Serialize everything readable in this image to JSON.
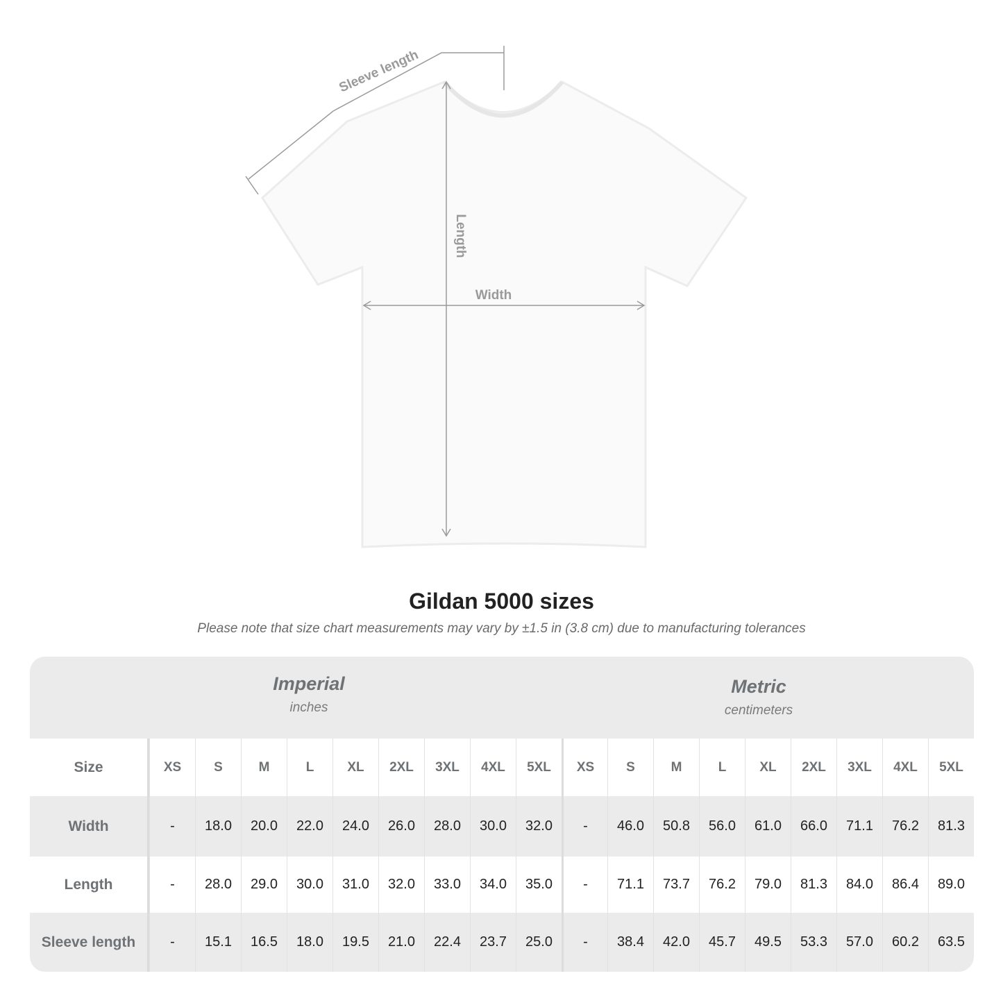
{
  "diagram": {
    "sleeve_label": "Sleeve length",
    "length_label": "Length",
    "width_label": "Width",
    "line_color": "#9a9a9a"
  },
  "title": "Gildan 5000 sizes",
  "note": "Please note that size chart measurements may vary by ±1.5 in (3.8 cm) due to manufacturing tolerances",
  "imperial": {
    "name": "Imperial",
    "unit": "inches"
  },
  "metric": {
    "name": "Metric",
    "unit": "centimeters"
  },
  "size_label": "Size",
  "sizes": [
    "XS",
    "S",
    "M",
    "L",
    "XL",
    "2XL",
    "3XL",
    "4XL",
    "5XL"
  ],
  "rows": [
    {
      "label": "Width",
      "imperial": [
        "-",
        "18.0",
        "20.0",
        "22.0",
        "24.0",
        "26.0",
        "28.0",
        "30.0",
        "32.0"
      ],
      "metric": [
        "-",
        "46.0",
        "50.8",
        "56.0",
        "61.0",
        "66.0",
        "71.1",
        "76.2",
        "81.3"
      ]
    },
    {
      "label": "Length",
      "imperial": [
        "-",
        "28.0",
        "29.0",
        "30.0",
        "31.0",
        "32.0",
        "33.0",
        "34.0",
        "35.0"
      ],
      "metric": [
        "-",
        "71.1",
        "73.7",
        "76.2",
        "79.0",
        "81.3",
        "84.0",
        "86.4",
        "89.0"
      ]
    },
    {
      "label": "Sleeve length",
      "imperial": [
        "-",
        "15.1",
        "16.5",
        "18.0",
        "19.5",
        "21.0",
        "22.4",
        "23.7",
        "25.0"
      ],
      "metric": [
        "-",
        "38.4",
        "42.0",
        "45.7",
        "49.5",
        "53.3",
        "57.0",
        "60.2",
        "63.5"
      ]
    }
  ],
  "colors": {
    "band": "#ebebeb",
    "label": "#6f7275",
    "text": "#222222"
  }
}
